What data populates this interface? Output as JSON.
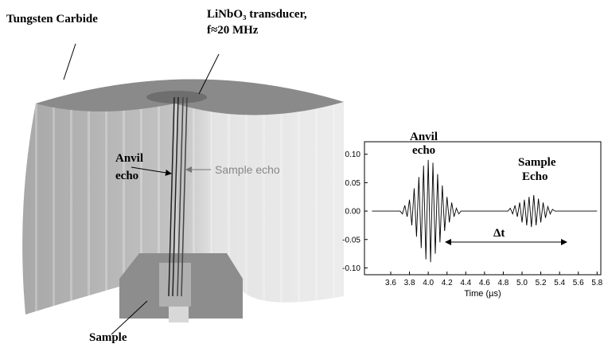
{
  "diagram": {
    "labels": {
      "tungsten": "Tungsten Carbide",
      "transducer": "LiNbO₃ transducer,",
      "frequency": "f≈20 MHz",
      "anvil_echo": [
        "Anvil",
        "echo"
      ],
      "sample_echo": "Sample echo",
      "sample": "Sample"
    }
  },
  "chart_data": {
    "type": "line",
    "xlabel": "Time (µs)",
    "annotations": {
      "anvil": [
        "Anvil",
        "echo"
      ],
      "sample": [
        "Sample",
        "Echo"
      ],
      "delta": "Δt"
    },
    "color": "#000000",
    "x": [
      3.4,
      3.7,
      3.725,
      3.75,
      3.775,
      3.8,
      3.825,
      3.85,
      3.875,
      3.9,
      3.925,
      3.95,
      3.975,
      4.0,
      4.025,
      4.05,
      4.075,
      4.1,
      4.125,
      4.15,
      4.175,
      4.2,
      4.225,
      4.25,
      4.275,
      4.3,
      4.325,
      4.35,
      4.85,
      4.875,
      4.9,
      4.925,
      4.95,
      4.975,
      5.0,
      5.025,
      5.05,
      5.075,
      5.1,
      5.125,
      5.15,
      5.175,
      5.2,
      5.225,
      5.25,
      5.275,
      5.3,
      5.325,
      5.35,
      5.8
    ],
    "values": [
      0,
      0,
      -0.005,
      0.01,
      -0.01,
      0.02,
      -0.025,
      0.04,
      -0.045,
      0.06,
      -0.065,
      0.08,
      -0.085,
      0.09,
      -0.09,
      0.085,
      -0.075,
      0.065,
      -0.055,
      0.045,
      -0.035,
      0.025,
      -0.02,
      0.015,
      -0.01,
      0.005,
      -0.005,
      0,
      0,
      0.005,
      -0.005,
      0.01,
      -0.01,
      0.015,
      -0.02,
      0.02,
      -0.025,
      0.025,
      -0.028,
      0.028,
      -0.025,
      0.022,
      -0.02,
      0.015,
      -0.012,
      0.008,
      -0.005,
      0.003,
      0,
      0
    ],
    "xlim": [
      3.32,
      5.84
    ],
    "ylim": [
      -0.112,
      0.122
    ],
    "xticks": [
      3.6,
      3.8,
      {
        "value": 4.0,
        "label": "4.0"
      },
      4.2,
      4.4,
      4.6,
      4.8,
      {
        "value": 5.0,
        "label": "5.0"
      },
      5.2,
      5.4,
      5.6,
      5.8
    ],
    "yticks": [
      {
        "value": 0.1,
        "label": "0.10"
      },
      {
        "value": 0.05,
        "label": "0.05"
      },
      {
        "value": 0,
        "label": "0.00"
      },
      {
        "value": -0.05,
        "label": "-0.05"
      },
      {
        "value": -0.1,
        "label": "-0.10"
      }
    ]
  }
}
